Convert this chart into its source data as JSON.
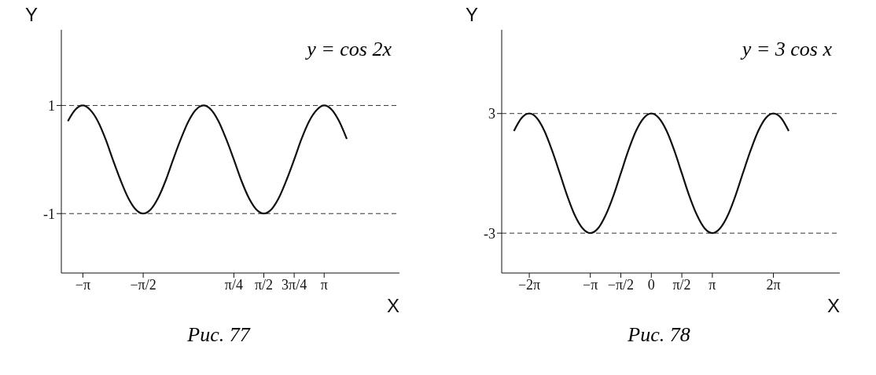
{
  "chart_data": [
    {
      "type": "line",
      "title": "Рис. 77",
      "xlabel": "X",
      "ylabel": "Y",
      "annotations": [
        "y = cos 2x"
      ],
      "xlim": [
        -3.7,
        5.1
      ],
      "ylim": [
        -2.1,
        2.4
      ],
      "xticks": [
        {
          "value": -3.14,
          "label": "−π"
        },
        {
          "value": -1.57,
          "label": "−π/2"
        },
        {
          "value": 0.79,
          "label": "π/4"
        },
        {
          "value": 1.57,
          "label": "π/2"
        },
        {
          "value": 2.36,
          "label": "3π/4"
        },
        {
          "value": 3.14,
          "label": "π"
        }
      ],
      "yticks": [
        -1,
        1
      ],
      "marker": "none",
      "line_style": "solid",
      "ref_lines": [
        {
          "axis": "y",
          "value": 1,
          "color": "#333333",
          "line_style": "dashed"
        },
        {
          "axis": "y",
          "value": -1,
          "color": "#333333",
          "line_style": "dashed"
        }
      ],
      "series": [
        {
          "color": "#111111",
          "x": [
            -3.53,
            -3.34,
            -3.14,
            -2.95,
            -2.75,
            -2.55,
            -2.36,
            -2.16,
            -1.96,
            -1.77,
            -1.57,
            -1.37,
            -1.18,
            -0.98,
            -0.79,
            -0.59,
            -0.39,
            -0.2,
            0,
            0.2,
            0.39,
            0.59,
            0.79,
            0.98,
            1.18,
            1.37,
            1.57,
            1.77,
            1.96,
            2.16,
            2.36,
            2.55,
            2.75,
            2.95,
            3.14,
            3.34,
            3.53,
            3.73
          ],
          "values": [
            0.71,
            0.92,
            1,
            0.92,
            0.71,
            0.38,
            0,
            -0.38,
            -0.71,
            -0.92,
            -1,
            -0.92,
            -0.71,
            -0.38,
            0,
            0.38,
            0.71,
            0.92,
            1,
            0.92,
            0.71,
            0.38,
            0,
            -0.38,
            -0.71,
            -0.92,
            -1,
            -0.92,
            -0.71,
            -0.38,
            0,
            0.38,
            0.71,
            0.92,
            1,
            0.92,
            0.71,
            0.38
          ]
        }
      ]
    },
    {
      "type": "line",
      "title": "Рис. 78",
      "xlabel": "X",
      "ylabel": "Y",
      "annotations": [
        "y = 3 cos x"
      ],
      "xlim": [
        -7.7,
        9.7
      ],
      "ylim": [
        -5,
        7.2
      ],
      "xticks": [
        {
          "value": -6.28,
          "label": "−2π"
        },
        {
          "value": -3.14,
          "label": "−π"
        },
        {
          "value": -1.57,
          "label": "−π/2"
        },
        0,
        {
          "value": 1.57,
          "label": "π/2"
        },
        {
          "value": 3.14,
          "label": "π"
        },
        {
          "value": 6.28,
          "label": "2π"
        }
      ],
      "yticks": [
        -3,
        3
      ],
      "marker": "none",
      "line_style": "solid",
      "ref_lines": [
        {
          "axis": "y",
          "value": 3,
          "color": "#333333",
          "line_style": "dashed"
        },
        {
          "axis": "y",
          "value": -3,
          "color": "#333333",
          "line_style": "dashed"
        }
      ],
      "series": [
        {
          "color": "#111111",
          "x": [
            -7.07,
            -6.68,
            -6.28,
            -5.89,
            -5.5,
            -5.11,
            -4.71,
            -4.32,
            -3.93,
            -3.53,
            -3.14,
            -2.75,
            -2.36,
            -1.96,
            -1.57,
            -1.18,
            -0.79,
            -0.39,
            0,
            0.39,
            0.79,
            1.18,
            1.57,
            1.96,
            2.36,
            2.75,
            3.14,
            3.53,
            3.93,
            4.32,
            4.71,
            5.11,
            5.5,
            5.89,
            6.28,
            6.68,
            7.07
          ],
          "values": [
            2.12,
            2.77,
            3,
            2.77,
            2.12,
            1.15,
            0,
            -1.15,
            -2.12,
            -2.77,
            -3,
            -2.77,
            -2.12,
            -1.15,
            0,
            1.15,
            2.12,
            2.77,
            3,
            2.77,
            2.12,
            1.15,
            0,
            -1.15,
            -2.12,
            -2.77,
            -3,
            -2.77,
            -2.12,
            -1.15,
            0,
            1.15,
            2.12,
            2.77,
            3,
            2.77,
            2.12
          ]
        }
      ]
    }
  ]
}
